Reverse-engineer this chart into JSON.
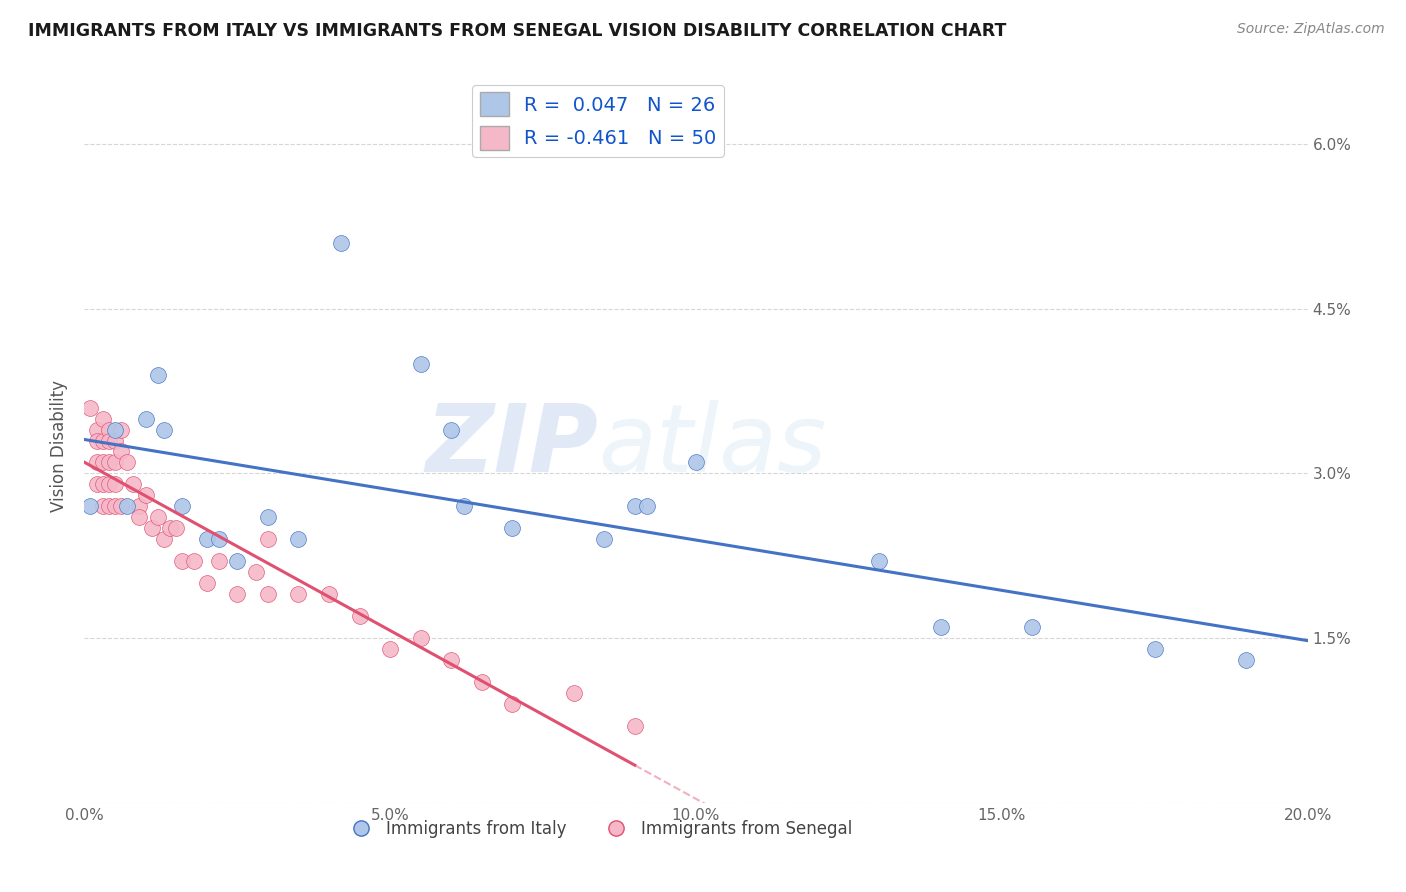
{
  "title": "IMMIGRANTS FROM ITALY VS IMMIGRANTS FROM SENEGAL VISION DISABILITY CORRELATION CHART",
  "source": "Source: ZipAtlas.com",
  "ylabel": "Vision Disability",
  "xlabel": "",
  "xlim": [
    0.0,
    0.2
  ],
  "ylim": [
    0.0,
    0.065
  ],
  "xticks": [
    0.0,
    0.05,
    0.1,
    0.15,
    0.2
  ],
  "yticks": [
    0.0,
    0.015,
    0.03,
    0.045,
    0.06
  ],
  "xticklabels": [
    "0.0%",
    "5.0%",
    "10.0%",
    "15.0%",
    "20.0%"
  ],
  "yticklabels": [
    "",
    "1.5%",
    "3.0%",
    "4.5%",
    "6.0%"
  ],
  "italy_color": "#aec6e8",
  "senegal_color": "#f5b8c8",
  "italy_line_color": "#4472c4",
  "senegal_line_color": "#e05070",
  "italy_scatter": [
    [
      0.001,
      0.027
    ],
    [
      0.005,
      0.034
    ],
    [
      0.007,
      0.027
    ],
    [
      0.01,
      0.035
    ],
    [
      0.012,
      0.039
    ],
    [
      0.013,
      0.034
    ],
    [
      0.016,
      0.027
    ],
    [
      0.02,
      0.024
    ],
    [
      0.022,
      0.024
    ],
    [
      0.025,
      0.022
    ],
    [
      0.03,
      0.026
    ],
    [
      0.035,
      0.024
    ],
    [
      0.042,
      0.051
    ],
    [
      0.055,
      0.04
    ],
    [
      0.06,
      0.034
    ],
    [
      0.062,
      0.027
    ],
    [
      0.07,
      0.025
    ],
    [
      0.085,
      0.024
    ],
    [
      0.09,
      0.027
    ],
    [
      0.092,
      0.027
    ],
    [
      0.1,
      0.031
    ],
    [
      0.13,
      0.022
    ],
    [
      0.14,
      0.016
    ],
    [
      0.155,
      0.016
    ],
    [
      0.175,
      0.014
    ],
    [
      0.19,
      0.013
    ]
  ],
  "senegal_scatter": [
    [
      0.001,
      0.036
    ],
    [
      0.002,
      0.034
    ],
    [
      0.002,
      0.033
    ],
    [
      0.002,
      0.031
    ],
    [
      0.002,
      0.029
    ],
    [
      0.003,
      0.035
    ],
    [
      0.003,
      0.033
    ],
    [
      0.003,
      0.031
    ],
    [
      0.003,
      0.029
    ],
    [
      0.003,
      0.027
    ],
    [
      0.004,
      0.034
    ],
    [
      0.004,
      0.033
    ],
    [
      0.004,
      0.031
    ],
    [
      0.004,
      0.029
    ],
    [
      0.004,
      0.027
    ],
    [
      0.005,
      0.033
    ],
    [
      0.005,
      0.031
    ],
    [
      0.005,
      0.029
    ],
    [
      0.005,
      0.027
    ],
    [
      0.006,
      0.034
    ],
    [
      0.006,
      0.032
    ],
    [
      0.006,
      0.027
    ],
    [
      0.007,
      0.031
    ],
    [
      0.008,
      0.029
    ],
    [
      0.009,
      0.027
    ],
    [
      0.009,
      0.026
    ],
    [
      0.01,
      0.028
    ],
    [
      0.011,
      0.025
    ],
    [
      0.012,
      0.026
    ],
    [
      0.013,
      0.024
    ],
    [
      0.014,
      0.025
    ],
    [
      0.015,
      0.025
    ],
    [
      0.016,
      0.022
    ],
    [
      0.018,
      0.022
    ],
    [
      0.02,
      0.02
    ],
    [
      0.022,
      0.022
    ],
    [
      0.025,
      0.019
    ],
    [
      0.028,
      0.021
    ],
    [
      0.03,
      0.019
    ],
    [
      0.03,
      0.024
    ],
    [
      0.035,
      0.019
    ],
    [
      0.04,
      0.019
    ],
    [
      0.045,
      0.017
    ],
    [
      0.05,
      0.014
    ],
    [
      0.055,
      0.015
    ],
    [
      0.06,
      0.013
    ],
    [
      0.065,
      0.011
    ],
    [
      0.07,
      0.009
    ],
    [
      0.08,
      0.01
    ],
    [
      0.09,
      0.007
    ]
  ],
  "italy_R": 0.047,
  "italy_N": 26,
  "senegal_R": -0.461,
  "senegal_N": 50,
  "legend_italy_label": "Immigrants from Italy",
  "legend_senegal_label": "Immigrants from Senegal",
  "watermark_zip": "ZIP",
  "watermark_atlas": "atlas",
  "background_color": "#ffffff",
  "grid_color": "#cccccc"
}
